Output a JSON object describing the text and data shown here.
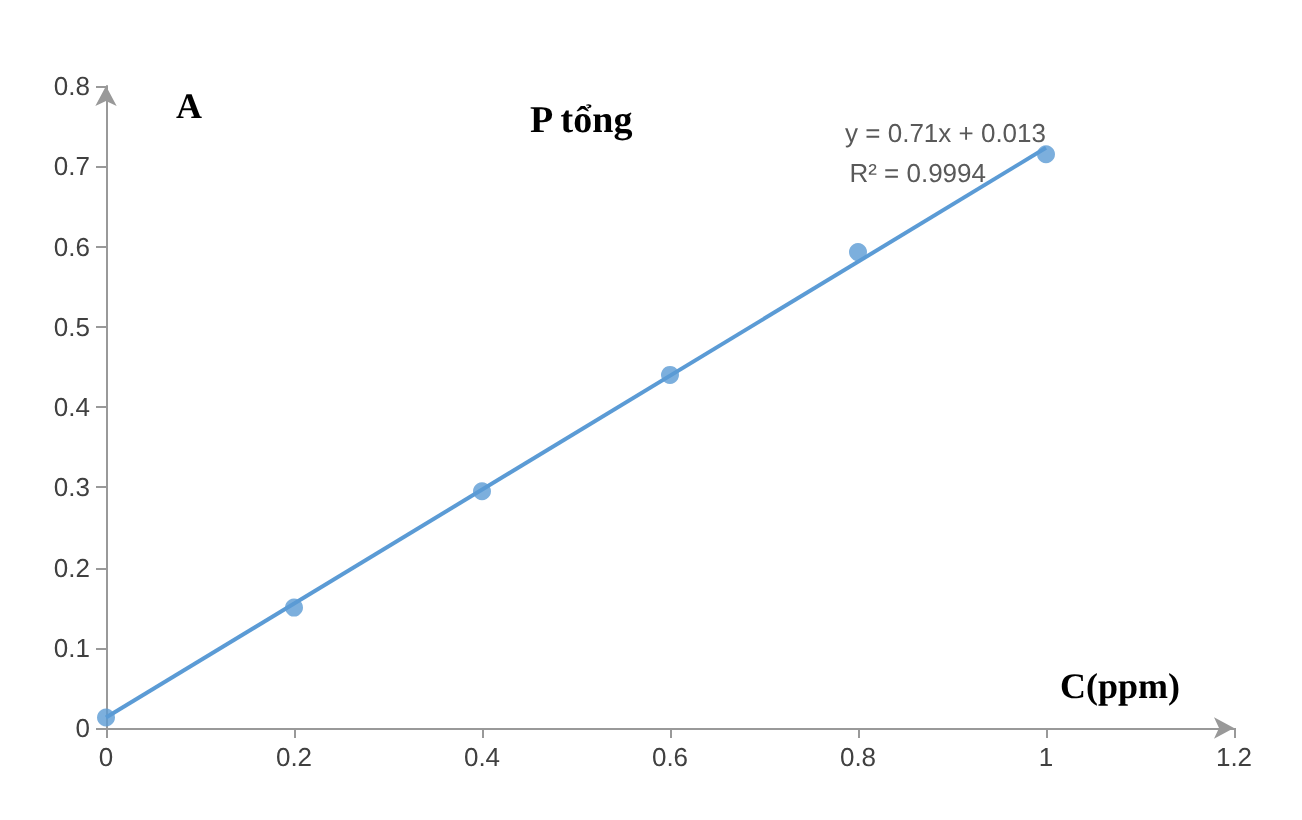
{
  "chart_data": {
    "type": "scatter",
    "title": "P tổng",
    "xlabel": "C(ppm)",
    "ylabel": "A",
    "annotations": [
      "y = 0.71x + 0.013",
      "R² = 0.9994"
    ],
    "series": [
      {
        "type": "scatter",
        "color": "#5b9bd5",
        "marker": "circle",
        "x": [
          0,
          0.2,
          0.4,
          0.6,
          0.8,
          1
        ],
        "values": [
          0.013,
          0.15,
          0.295,
          0.44,
          0.593,
          0.715
        ]
      },
      {
        "type": "line",
        "color": "#5b9bd5",
        "marker": "none",
        "line_style": "solid",
        "x": [
          0,
          1
        ],
        "values": [
          0.013,
          0.723
        ]
      }
    ],
    "xlim": [
      0,
      1.2
    ],
    "xticks": [
      0,
      0.2,
      0.4,
      0.6,
      0.8,
      1,
      1.2
    ],
    "ylim": [
      0,
      0.8
    ],
    "yticks": [
      0,
      0.1,
      0.2,
      0.3,
      0.4,
      0.5,
      0.6,
      0.7,
      0.8
    ],
    "grid": false
  }
}
